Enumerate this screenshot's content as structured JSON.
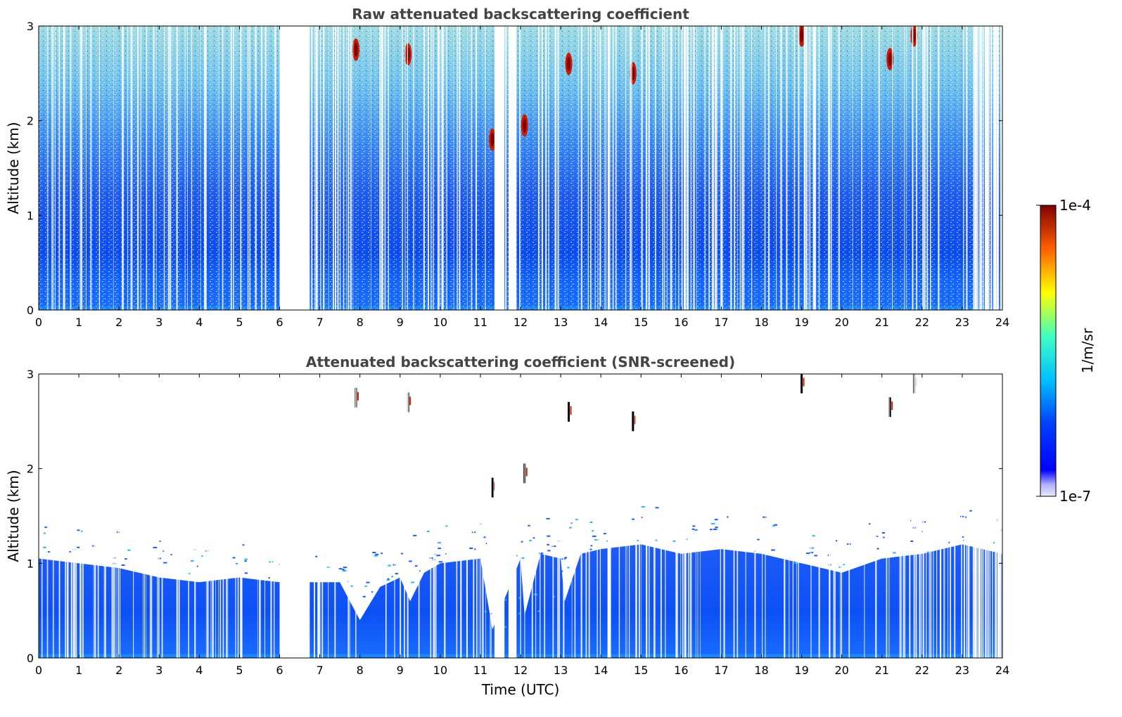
{
  "chart_data": [
    {
      "type": "heatmap",
      "title": "Raw attenuated backscattering coefficient",
      "xlabel": "",
      "ylabel": "Altitude (km)",
      "xlim": [
        0,
        24
      ],
      "ylim": [
        0,
        3
      ],
      "xticks": [
        "0",
        "1",
        "2",
        "3",
        "4",
        "5",
        "6",
        "7",
        "8",
        "9",
        "10",
        "11",
        "12",
        "13",
        "14",
        "15",
        "16",
        "17",
        "18",
        "19",
        "20",
        "21",
        "22",
        "23",
        "24"
      ],
      "yticks": [
        "0",
        "1",
        "2",
        "3"
      ],
      "data_gaps_utc": [
        [
          6.0,
          6.75
        ],
        [
          11.35,
          11.6
        ],
        [
          11.7,
          11.9
        ]
      ],
      "cloud_features": [
        {
          "time_utc": 7.9,
          "altitude_km": 2.75
        },
        {
          "time_utc": 9.2,
          "altitude_km": 2.7
        },
        {
          "time_utc": 11.3,
          "altitude_km": 1.8
        },
        {
          "time_utc": 12.1,
          "altitude_km": 1.95
        },
        {
          "time_utc": 13.2,
          "altitude_km": 2.6
        },
        {
          "time_utc": 14.8,
          "altitude_km": 2.5
        },
        {
          "time_utc": 19.0,
          "altitude_km": 2.9
        },
        {
          "time_utc": 21.2,
          "altitude_km": 2.65
        },
        {
          "time_utc": 21.8,
          "altitude_km": 2.9
        }
      ]
    },
    {
      "type": "heatmap",
      "title": "Attenuated backscattering coefficient (SNR-screened)",
      "xlabel": "Time (UTC)",
      "ylabel": "Altitude (km)",
      "xlim": [
        0,
        24
      ],
      "ylim": [
        0,
        3
      ],
      "xticks": [
        "0",
        "1",
        "2",
        "3",
        "4",
        "5",
        "6",
        "7",
        "8",
        "9",
        "10",
        "11",
        "12",
        "13",
        "14",
        "15",
        "16",
        "17",
        "18",
        "19",
        "20",
        "21",
        "22",
        "23",
        "24"
      ],
      "yticks": [
        "0",
        "1",
        "2",
        "3"
      ],
      "data_gaps_utc": [
        [
          6.0,
          6.75
        ],
        [
          11.35,
          11.6
        ],
        [
          11.7,
          11.9
        ]
      ],
      "boundary_layer_top_km": [
        [
          0,
          1.05
        ],
        [
          1,
          1.0
        ],
        [
          2,
          0.95
        ],
        [
          3,
          0.85
        ],
        [
          4,
          0.8
        ],
        [
          5,
          0.85
        ],
        [
          6,
          0.8
        ],
        [
          6.75,
          0.8
        ],
        [
          7.5,
          0.8
        ],
        [
          8,
          0.4
        ],
        [
          8.5,
          0.75
        ],
        [
          9,
          0.85
        ],
        [
          9.25,
          0.6
        ],
        [
          9.6,
          0.9
        ],
        [
          10,
          1.0
        ],
        [
          11,
          1.05
        ],
        [
          11.3,
          0.3
        ],
        [
          12,
          1.05
        ],
        [
          12.1,
          0.45
        ],
        [
          12.5,
          1.1
        ],
        [
          13,
          1.05
        ],
        [
          13.1,
          0.6
        ],
        [
          13.5,
          1.1
        ],
        [
          14,
          1.15
        ],
        [
          15,
          1.2
        ],
        [
          16,
          1.1
        ],
        [
          17,
          1.15
        ],
        [
          18,
          1.1
        ],
        [
          19,
          1.0
        ],
        [
          20,
          0.9
        ],
        [
          21,
          1.05
        ],
        [
          22,
          1.1
        ],
        [
          23,
          1.2
        ],
        [
          24,
          1.1
        ]
      ]
    }
  ],
  "colorbar": {
    "label": "1/m/sr",
    "max_label": "1e-4",
    "min_label": "1e-7",
    "scale": "log",
    "colormap": "jet"
  }
}
